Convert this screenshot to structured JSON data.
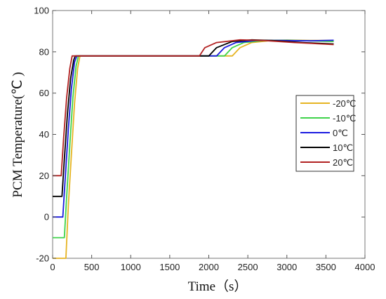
{
  "chart_data": {
    "type": "line",
    "title": "",
    "xlabel": "Time（s）",
    "ylabel": "PCM Temperature(℃ )",
    "xlim": [
      0,
      4000
    ],
    "ylim": [
      -20,
      100
    ],
    "x_ticks": [
      0,
      500,
      1000,
      1500,
      2000,
      2500,
      3000,
      3500,
      4000
    ],
    "y_ticks": [
      -20,
      0,
      20,
      40,
      60,
      80,
      100
    ],
    "grid": false,
    "legend_position": "right",
    "series": [
      {
        "name": "-20℃",
        "color": "#E6B422",
        "points": [
          [
            0,
            -20
          ],
          [
            170,
            -20
          ],
          [
            200,
            5
          ],
          [
            240,
            30
          ],
          [
            280,
            55
          ],
          [
            320,
            72
          ],
          [
            350,
            78
          ],
          [
            2300,
            78
          ],
          [
            2400,
            82
          ],
          [
            2550,
            84.5
          ],
          [
            2800,
            85.5
          ],
          [
            3000,
            85.7
          ],
          [
            3300,
            85.5
          ],
          [
            3600,
            85.5
          ]
        ]
      },
      {
        "name": "-10℃",
        "color": "#3FD34A",
        "points": [
          [
            0,
            -10
          ],
          [
            150,
            -10
          ],
          [
            180,
            10
          ],
          [
            220,
            35
          ],
          [
            260,
            58
          ],
          [
            300,
            73
          ],
          [
            330,
            78
          ],
          [
            2200,
            78
          ],
          [
            2300,
            82
          ],
          [
            2450,
            84.5
          ],
          [
            2700,
            85.5
          ],
          [
            3000,
            85.6
          ],
          [
            3300,
            85.3
          ],
          [
            3600,
            85
          ]
        ]
      },
      {
        "name": "0℃",
        "color": "#1A1AE0",
        "points": [
          [
            0,
            0
          ],
          [
            130,
            0
          ],
          [
            160,
            18
          ],
          [
            200,
            42
          ],
          [
            240,
            62
          ],
          [
            280,
            75
          ],
          [
            310,
            78
          ],
          [
            2100,
            78
          ],
          [
            2200,
            82
          ],
          [
            2350,
            84.5
          ],
          [
            2600,
            85.5
          ],
          [
            2900,
            85.5
          ],
          [
            3300,
            85.3
          ],
          [
            3600,
            85.6
          ]
        ]
      },
      {
        "name": "10℃",
        "color": "#000000",
        "points": [
          [
            0,
            10
          ],
          [
            120,
            10
          ],
          [
            150,
            28
          ],
          [
            190,
            50
          ],
          [
            230,
            67
          ],
          [
            270,
            76
          ],
          [
            290,
            78
          ],
          [
            2000,
            78
          ],
          [
            2100,
            82
          ],
          [
            2300,
            85
          ],
          [
            2550,
            85.8
          ],
          [
            2800,
            85.5
          ],
          [
            3200,
            84.5
          ],
          [
            3600,
            83.8
          ]
        ]
      },
      {
        "name": "20℃",
        "color": "#B22222",
        "points": [
          [
            0,
            20
          ],
          [
            110,
            20
          ],
          [
            140,
            38
          ],
          [
            180,
            58
          ],
          [
            220,
            72
          ],
          [
            250,
            78
          ],
          [
            1880,
            78
          ],
          [
            1950,
            82
          ],
          [
            2100,
            84.5
          ],
          [
            2400,
            85.8
          ],
          [
            2700,
            85.5
          ],
          [
            3100,
            84.5
          ],
          [
            3600,
            83.5
          ]
        ]
      }
    ]
  }
}
